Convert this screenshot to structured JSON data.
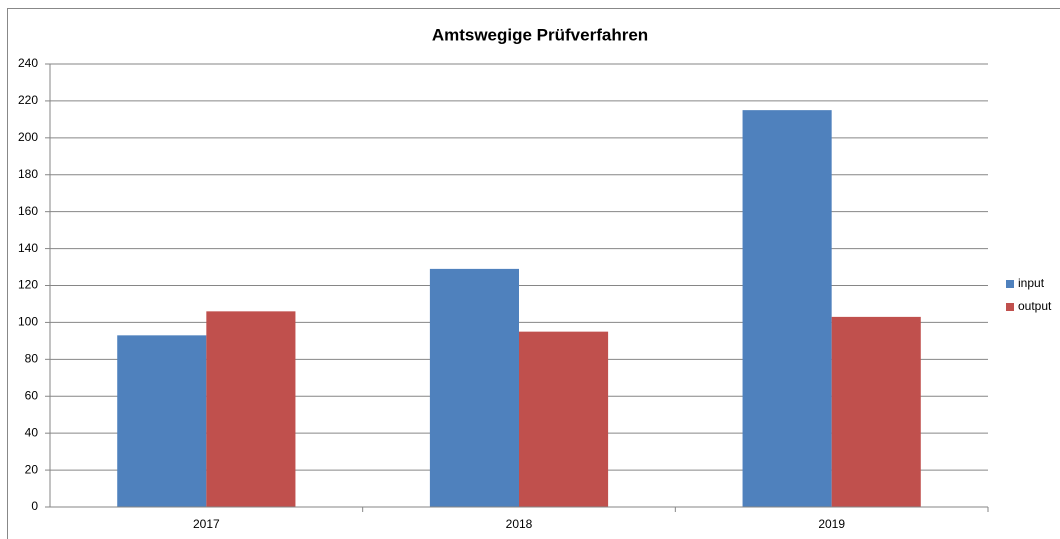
{
  "chart_data": {
    "type": "bar",
    "title": "Amtswegige Prüfverfahren",
    "categories": [
      "2017",
      "2018",
      "2019"
    ],
    "series": [
      {
        "name": "input",
        "color": "#4f81bd",
        "values": [
          93,
          129,
          215
        ]
      },
      {
        "name": "output",
        "color": "#c0504d",
        "values": [
          106,
          95,
          103
        ]
      }
    ],
    "ylim": [
      0,
      240
    ],
    "yticks": [
      0,
      20,
      40,
      60,
      80,
      100,
      120,
      140,
      160,
      180,
      200,
      220,
      240
    ],
    "grid": true,
    "legend": "right"
  }
}
